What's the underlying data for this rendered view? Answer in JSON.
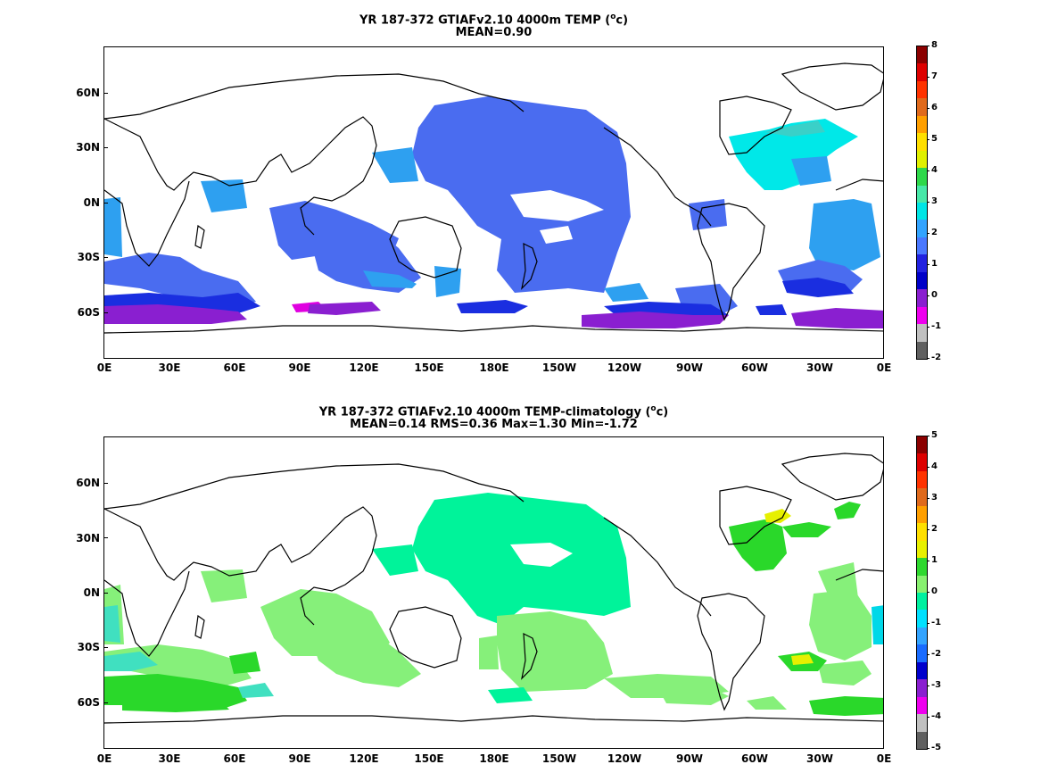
{
  "panels": [
    {
      "title_line1_pre": "YR 187-372 GTIAFv2.10 4000m TEMP (",
      "title_unit_sup": "o",
      "title_unit_rest": "c)",
      "title_line2": "MEAN=0.90",
      "lat_labels": [
        "60N",
        "30N",
        "0N",
        "30S",
        "60S"
      ],
      "lon_labels": [
        "0E",
        "30E",
        "60E",
        "90E",
        "120E",
        "150E",
        "180E",
        "150W",
        "120W",
        "90W",
        "60W",
        "30W",
        "0E"
      ],
      "colorbar": {
        "labels": [
          "8",
          "7",
          "6",
          "5",
          "4",
          "3",
          "2",
          "1",
          "0",
          "-1",
          "-2"
        ],
        "colors": [
          "#8b0000",
          "#dd0000",
          "#ff3300",
          "#e06a1c",
          "#ff9f00",
          "#ffdf00",
          "#e0f000",
          "#2ed84a",
          "#48e8a8",
          "#00e5e5",
          "#33a4ff",
          "#4a78ff",
          "#2222e0",
          "#0000c8",
          "#8a1fd0",
          "#ee00ee",
          "#c0c0c0",
          "#606060"
        ],
        "range": [
          -2,
          8
        ]
      }
    },
    {
      "title_line1_pre": "YR 187-372 GTIAFv2.10 4000m TEMP-climatology (",
      "title_unit_sup": "o",
      "title_unit_rest": "c)",
      "title_line2": "MEAN=0.14   RMS=0.36   Max=1.30   Min=-1.72",
      "lat_labels": [
        "60N",
        "30N",
        "0N",
        "30S",
        "60S"
      ],
      "lon_labels": [
        "0E",
        "30E",
        "60E",
        "90E",
        "120E",
        "150E",
        "180E",
        "150W",
        "120W",
        "90W",
        "60W",
        "30W",
        "0E"
      ],
      "colorbar": {
        "labels": [
          "5",
          "4",
          "3",
          "2",
          "1",
          "0",
          "-1",
          "-2",
          "-3",
          "-4",
          "-5"
        ],
        "colors": [
          "#8b0000",
          "#dd0000",
          "#ff3300",
          "#e06a1c",
          "#ff9f00",
          "#ffdf00",
          "#e8f000",
          "#2ed82e",
          "#88f070",
          "#00f0a0",
          "#00e0ff",
          "#33a4ff",
          "#1a6cff",
          "#0000cc",
          "#8a1fd0",
          "#ee00ee",
          "#c0c0c0",
          "#606060"
        ],
        "range": [
          -5,
          5
        ]
      }
    }
  ],
  "map_colors": {
    "coast": "#000000",
    "panel1_deep": "#4a6cf0",
    "panel1_mid": "#3c8cf0",
    "panel1_cyan": "#00e8e8",
    "panel1_teal": "#3ad0c8",
    "panel1_lightblue": "#2ea0f0",
    "panel1_blue0": "#1a2ee0",
    "panel1_purple": "#8a1fd0",
    "panel1_magenta": "#e000e0",
    "panel2_aqua": "#00f39a",
    "panel2_lightgreen": "#86f07a",
    "panel2_green": "#2ad82a",
    "panel2_yellow": "#e6f000",
    "panel2_cyan": "#00d8e8",
    "panel2_teal": "#40e0c0"
  }
}
